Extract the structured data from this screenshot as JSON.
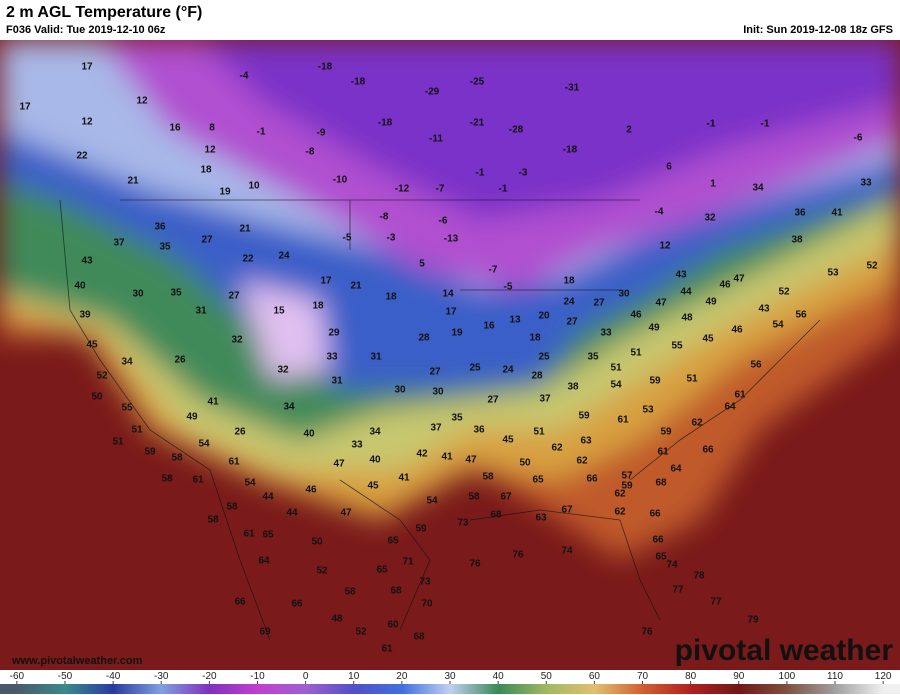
{
  "header": {
    "title": "2 m AGL Temperature (°F)",
    "valid": "F036 Valid: Tue 2019-12-10 06z",
    "init": "Init: Sun 2019-12-08 18z GFS"
  },
  "map": {
    "labels": [
      17,
      17,
      12,
      12,
      16,
      8,
      22,
      12,
      21,
      18,
      19,
      10,
      -4,
      -18,
      -18,
      -25,
      -29,
      -31,
      -21,
      -18,
      -1,
      -9,
      -11,
      -28,
      -8,
      -18,
      -10,
      -12,
      -7,
      -1,
      -1,
      -3,
      -1,
      -1,
      -6,
      2,
      6,
      1,
      -4,
      34,
      33,
      36,
      41,
      32,
      38,
      12,
      -8,
      -6,
      -13,
      -3,
      -5,
      5,
      -7,
      -5,
      37,
      36,
      35,
      27,
      21,
      22,
      24,
      43,
      40,
      30,
      35,
      27,
      17,
      21,
      18,
      18,
      14,
      17,
      16,
      13,
      20,
      18,
      24,
      27,
      27,
      30,
      43,
      47,
      53,
      52,
      46,
      44,
      49,
      47,
      46,
      48,
      49,
      43,
      52,
      56,
      54,
      46,
      39,
      31,
      15,
      29,
      28,
      19,
      33,
      55,
      45,
      45,
      32,
      33,
      31,
      25,
      24,
      18,
      25,
      28,
      35,
      51,
      51,
      54,
      59,
      51,
      61,
      56,
      52,
      34,
      26,
      32,
      31,
      30,
      27,
      30,
      27,
      37,
      38,
      50,
      55,
      41,
      34,
      49,
      59,
      53,
      61,
      64,
      62,
      51,
      54,
      26,
      40,
      35,
      37,
      36,
      45,
      51,
      63,
      59,
      66,
      51,
      59,
      58,
      33,
      34,
      42,
      41,
      47,
      50,
      62,
      62,
      61,
      64,
      61,
      58,
      61,
      47,
      40,
      45,
      41,
      58,
      65,
      66,
      57,
      59,
      62,
      68,
      54,
      44,
      46,
      54,
      58,
      67,
      58,
      44,
      47,
      59,
      73,
      68,
      63,
      67,
      62,
      66,
      61,
      65,
      50,
      65,
      66,
      65,
      76,
      76,
      74,
      58,
      71,
      64,
      52,
      65,
      73,
      74,
      68,
      70,
      66,
      78,
      77,
      66,
      58,
      48,
      77,
      79,
      69,
      52,
      60,
      68,
      76,
      61
    ]
  },
  "footer": {
    "url": "www.pivotalweather.com",
    "brand": "pivotal weather"
  },
  "colorbar": {
    "lim": [
      -63.5,
      123.5
    ],
    "ticks": [
      -60,
      -50,
      -40,
      -30,
      -20,
      -10,
      0,
      10,
      20,
      30,
      40,
      50,
      60,
      70,
      80,
      90,
      100,
      110,
      120
    ]
  }
}
